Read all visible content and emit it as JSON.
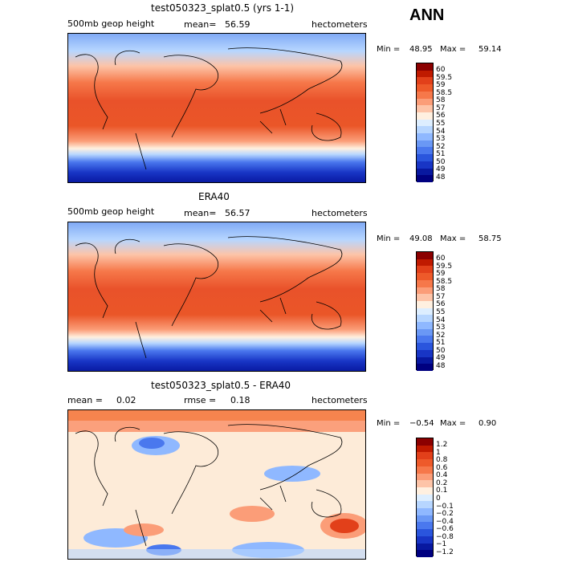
{
  "page_title": "ANN",
  "panels": [
    {
      "title": "test050323_splat0.5 (yrs 1-1)",
      "left_label": "500mb geop height",
      "mid_label": "mean=",
      "mid_value": "56.59",
      "units": "hectometers",
      "min_label": "Min =",
      "min_value": "48.95",
      "max_label": "Max =",
      "max_value": "59.14",
      "colorbar": {
        "colors": [
          "#8b0000",
          "#c01a00",
          "#e2401a",
          "#ee5a2a",
          "#f6784a",
          "#fb9d78",
          "#fdc4a8",
          "#fff0e0",
          "#ddeeff",
          "#b7d6ff",
          "#8fb8ff",
          "#6a98f5",
          "#4a78ee",
          "#2a55dd",
          "#1835c5",
          "#0818a0",
          "#000080"
        ],
        "labels": [
          "60",
          "59.5",
          "59",
          "58.5",
          "58",
          "57",
          "56",
          "55",
          "54",
          "53",
          "52",
          "51",
          "50",
          "49",
          "48"
        ]
      }
    },
    {
      "title": "ERA40",
      "left_label": "500mb geop height",
      "mid_label": "mean=",
      "mid_value": "56.57",
      "units": "hectometers",
      "min_label": "Min =",
      "min_value": "49.08",
      "max_label": "Max =",
      "max_value": "58.75",
      "colorbar": {
        "colors": [
          "#8b0000",
          "#c01a00",
          "#e2401a",
          "#ee5a2a",
          "#f6784a",
          "#fb9d78",
          "#fdc4a8",
          "#fff0e0",
          "#ddeeff",
          "#b7d6ff",
          "#8fb8ff",
          "#6a98f5",
          "#4a78ee",
          "#2a55dd",
          "#1835c5",
          "#0818a0",
          "#000080"
        ],
        "labels": [
          "60",
          "59.5",
          "59",
          "58.5",
          "58",
          "57",
          "56",
          "55",
          "54",
          "53",
          "52",
          "51",
          "50",
          "49",
          "48"
        ]
      }
    },
    {
      "title": "test050323_splat0.5 - ERA40",
      "left_label": "mean =",
      "left_value": "0.02",
      "mid_label": "rmse =",
      "mid_value": "0.18",
      "units": "hectometers",
      "min_label": "Min =",
      "min_value": "−0.54",
      "max_label": "Max =",
      "max_value": "0.90",
      "colorbar": {
        "colors": [
          "#8b0000",
          "#c01a00",
          "#e2401a",
          "#ee5a2a",
          "#f6784a",
          "#fb9d78",
          "#fdc4a8",
          "#fff0e0",
          "#ddeeff",
          "#b7d6ff",
          "#8fb8ff",
          "#6a98f5",
          "#4a78ee",
          "#2a55dd",
          "#1835c5",
          "#0818a0",
          "#000080"
        ],
        "labels": [
          "1.2",
          "1",
          "0.8",
          "0.6",
          "0.4",
          "0.2",
          "0.1",
          "0",
          "−0.1",
          "−0.2",
          "−0.4",
          "−0.6",
          "−0.8",
          "−1",
          "−1.2"
        ]
      }
    }
  ]
}
